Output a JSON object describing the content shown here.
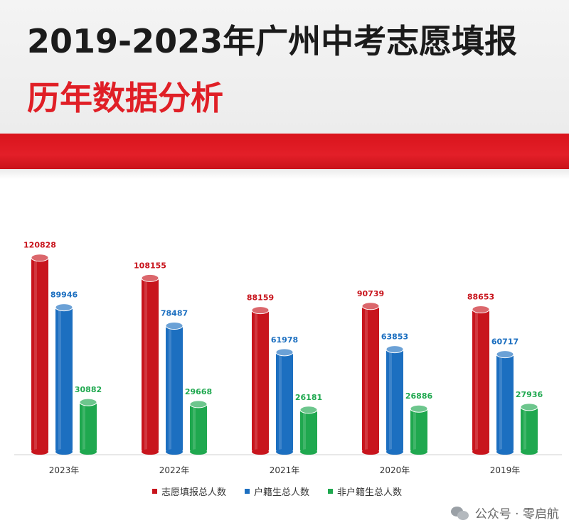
{
  "header": {
    "title": "2019-2023年广州中考志愿填报",
    "subtitle": "历年数据分析"
  },
  "chart_data": {
    "type": "bar",
    "categories": [
      "2023年",
      "2022年",
      "2021年",
      "2020年",
      "2019年"
    ],
    "series": [
      {
        "name": "志愿填报总人数",
        "color": "#c8151d",
        "values": [
          120828,
          108155,
          88159,
          90739,
          88653
        ]
      },
      {
        "name": "户籍生总人数",
        "color": "#1c6fc0",
        "values": [
          89946,
          78487,
          61978,
          63853,
          60717
        ]
      },
      {
        "name": "非户籍生总人数",
        "color": "#1fa84f",
        "values": [
          30882,
          29668,
          26181,
          26886,
          27936
        ]
      }
    ],
    "ylim": [
      0,
      130000
    ],
    "grid": false,
    "legend": "bottom"
  },
  "watermark": {
    "text": "公众号 · 零启航",
    "icon": "wechat-icon"
  }
}
